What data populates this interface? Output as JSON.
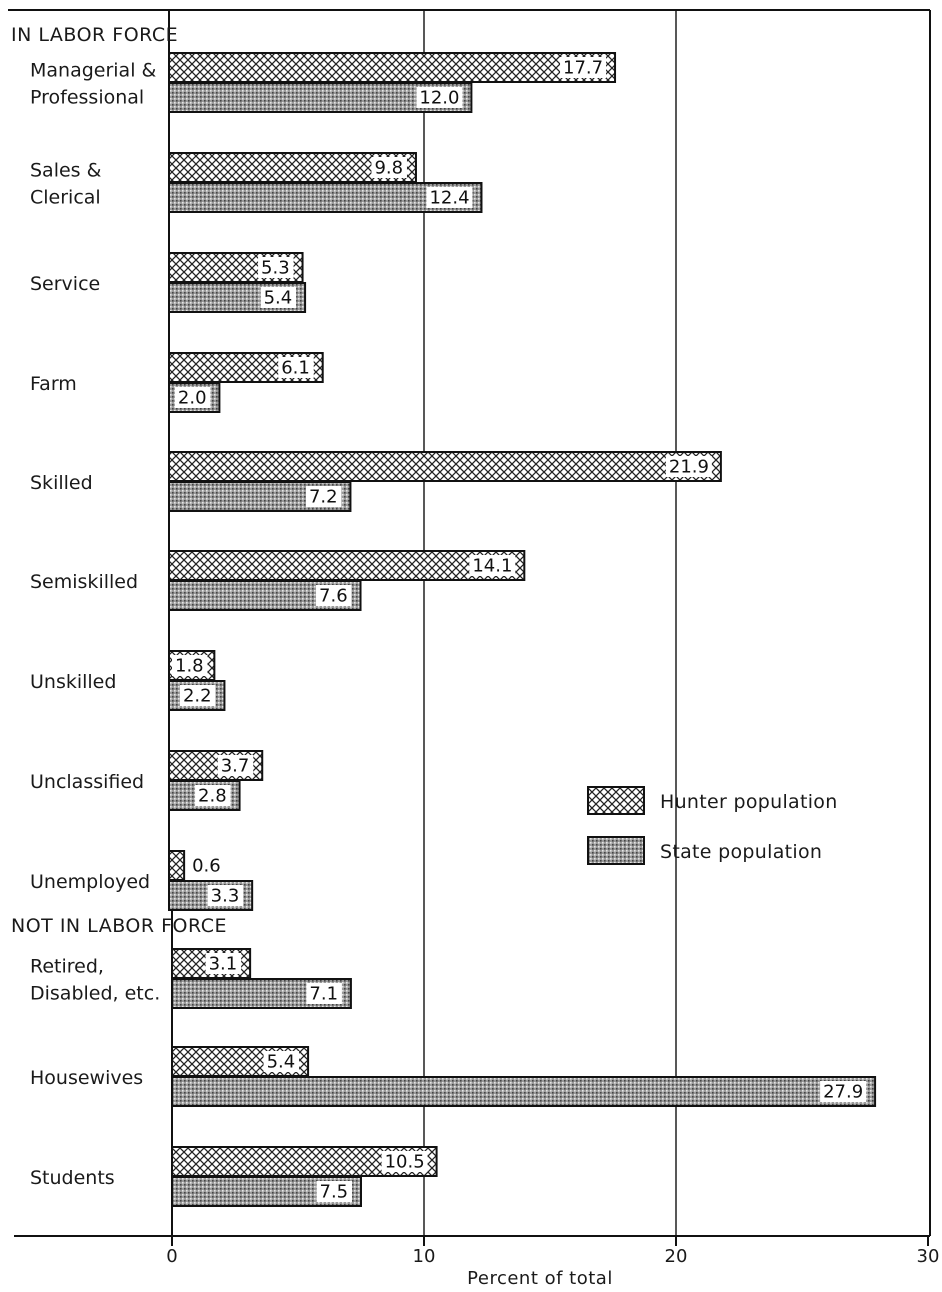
{
  "chart_data": {
    "type": "bar",
    "orientation": "horizontal",
    "xlabel": "Percent of total",
    "xlim": [
      0,
      30
    ],
    "x_ticks": [
      "0",
      "10",
      "20",
      "30"
    ],
    "grid": "vertical",
    "legend_position": "right-middle",
    "sections": [
      {
        "label": "IN LABOR FORCE",
        "categories": [
          {
            "label": [
              "Managerial &",
              "Professional"
            ],
            "hunter": 17.7,
            "state": 12.0,
            "hunter_label": "17.7",
            "state_label": "12.0"
          },
          {
            "label": [
              "Sales &",
              "Clerical"
            ],
            "hunter": 9.8,
            "state": 12.4,
            "hunter_label": "9.8",
            "state_label": "12.4"
          },
          {
            "label": [
              "Service"
            ],
            "hunter": 5.3,
            "state": 5.4,
            "hunter_label": "5.3",
            "state_label": "5.4"
          },
          {
            "label": [
              "Farm"
            ],
            "hunter": 6.1,
            "state": 2.0,
            "hunter_label": "6.1",
            "state_label": "2.0"
          },
          {
            "label": [
              "Skilled"
            ],
            "hunter": 21.9,
            "state": 7.2,
            "hunter_label": "21.9",
            "state_label": "7.2"
          },
          {
            "label": [
              "Semiskilled"
            ],
            "hunter": 14.1,
            "state": 7.6,
            "hunter_label": "14.1",
            "state_label": "7.6"
          },
          {
            "label": [
              "Unskilled"
            ],
            "hunter": 1.8,
            "state": 2.2,
            "hunter_label": "1.8",
            "state_label": "2.2"
          },
          {
            "label": [
              "Unclassified"
            ],
            "hunter": 3.7,
            "state": 2.8,
            "hunter_label": "3.7",
            "state_label": "2.8"
          },
          {
            "label": [
              "Unemployed"
            ],
            "hunter": 0.6,
            "state": 3.3,
            "hunter_label": "0.6",
            "state_label": "3.3"
          }
        ]
      },
      {
        "label": "NOT IN LABOR FORCE",
        "categories": [
          {
            "label": [
              "Retired,",
              "Disabled, etc."
            ],
            "hunter": 3.1,
            "state": 7.1,
            "hunter_label": "3.1",
            "state_label": "7.1"
          },
          {
            "label": [
              "Housewives"
            ],
            "hunter": 5.4,
            "state": 27.9,
            "hunter_label": "5.4",
            "state_label": "27.9"
          },
          {
            "label": [
              "Students"
            ],
            "hunter": 10.5,
            "state": 7.5,
            "hunter_label": "10.5",
            "state_label": "7.5"
          }
        ]
      }
    ],
    "series": [
      {
        "name": "Hunter population",
        "pattern": "crosshatch"
      },
      {
        "name": "State population",
        "pattern": "stipple"
      }
    ]
  }
}
